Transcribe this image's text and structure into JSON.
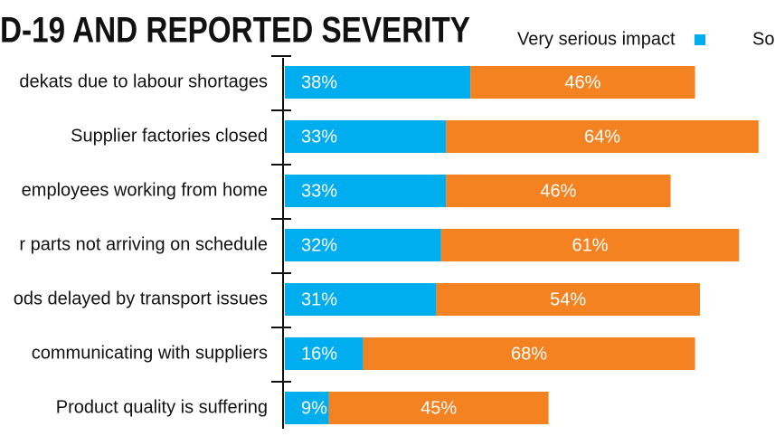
{
  "chart_data": {
    "type": "stacked-bar-horizontal",
    "title": "D-19 AND REPORTED SEVERITY",
    "categories": [
      "dekats due to labour shortages",
      "Supplier factories closed",
      "employees working from home",
      "r parts not arriving on schedule",
      "ods delayed by transport issues",
      "communicating with suppliers",
      "Product quality is suffering"
    ],
    "series": [
      {
        "name": "Very serious impact",
        "color": "#00aeef",
        "values": [
          38,
          33,
          33,
          32,
          31,
          16,
          9
        ],
        "value_labels": [
          "38%",
          "33%",
          "33%",
          "32%",
          "31%",
          "16%",
          "9%"
        ]
      },
      {
        "name": "So",
        "color": "#f58220",
        "values": [
          46,
          64,
          46,
          61,
          54,
          68,
          45
        ],
        "value_labels": [
          "46%",
          "64%",
          "46%",
          "61%",
          "54%",
          "68%",
          "45%"
        ]
      }
    ]
  }
}
